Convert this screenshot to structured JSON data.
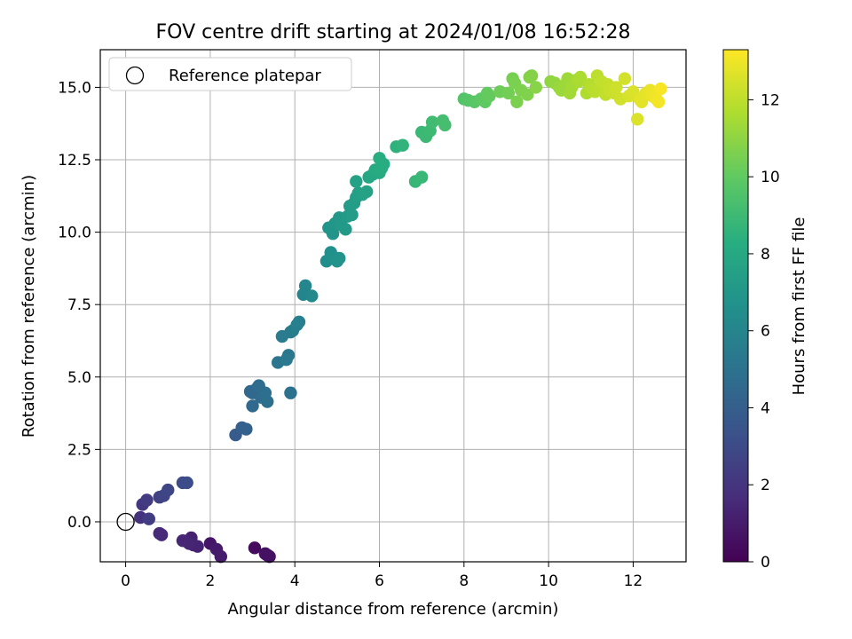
{
  "chart_data": {
    "type": "scatter",
    "title": "FOV centre drift starting at 2024/01/08 16:52:28",
    "xlabel": "Angular distance from reference (arcmin)",
    "ylabel": "Rotation from reference (arcmin)",
    "colorbar_label": "Hours from first FF file",
    "colormap": "viridis",
    "xlim": [
      -0.6,
      13.25
    ],
    "ylim": [
      -1.38,
      16.3
    ],
    "clim": [
      0,
      13.3
    ],
    "grid": true,
    "x_ticks": [
      0,
      2,
      4,
      6,
      8,
      10,
      12
    ],
    "y_ticks": [
      0.0,
      2.5,
      5.0,
      7.5,
      10.0,
      12.5,
      15.0
    ],
    "y_tick_labels": [
      "0.0",
      "2.5",
      "5.0",
      "7.5",
      "10.0",
      "12.5",
      "15.0"
    ],
    "c_ticks": [
      0,
      2,
      4,
      6,
      8,
      10,
      12
    ],
    "legend": {
      "position": "top-left",
      "entries": [
        "Reference platepar"
      ]
    },
    "reference_point": {
      "x": 0,
      "y": 0,
      "label": "Reference platepar"
    },
    "series": [
      {
        "x": [
          3.05,
          3.35,
          3.3,
          3.4,
          2.0,
          2.15,
          2.25,
          1.55,
          1.6,
          1.7,
          1.5,
          1.35,
          0.85,
          0.8
        ],
        "y": [
          -0.9,
          -1.15,
          -1.1,
          -1.2,
          -0.75,
          -0.95,
          -1.2,
          -0.55,
          -0.8,
          -0.85,
          -0.75,
          -0.65,
          -0.45,
          -0.4
        ],
        "h": [
          0.4,
          0.5,
          0.55,
          0.6,
          0.8,
          0.95,
          1.05,
          1.2,
          1.25,
          1.3,
          1.35,
          1.4,
          1.5,
          1.55
        ]
      },
      {
        "x": [
          0.35,
          0.4,
          0.5,
          0.55,
          0.8,
          0.9,
          1.0,
          1.35,
          1.45
        ],
        "y": [
          0.15,
          0.6,
          0.75,
          0.1,
          0.85,
          0.9,
          1.1,
          1.35,
          1.35
        ],
        "h": [
          1.9,
          2.1,
          2.3,
          2.4,
          2.6,
          2.7,
          2.8,
          3.0,
          3.1
        ]
      },
      {
        "x": [
          2.6,
          2.75,
          2.85,
          2.95,
          3.0,
          3.1,
          3.2,
          3.3,
          3.35,
          3.0,
          2.95,
          3.15,
          3.9
        ],
        "y": [
          3.0,
          3.25,
          3.2,
          4.5,
          4.0,
          4.6,
          4.3,
          4.45,
          4.15,
          4.45,
          4.5,
          4.7,
          4.45
        ],
        "h": [
          3.8,
          4.0,
          4.1,
          4.4,
          4.5,
          4.6,
          4.7,
          4.8,
          4.9,
          4.55,
          4.45,
          4.65,
          5.0
        ]
      },
      {
        "x": [
          3.6,
          3.85,
          3.8,
          3.9,
          3.7,
          3.95,
          4.05,
          4.1,
          4.25,
          4.2,
          4.4
        ],
        "y": [
          5.5,
          5.75,
          5.6,
          6.55,
          6.4,
          6.6,
          6.8,
          6.9,
          8.15,
          7.85,
          7.8
        ],
        "h": [
          5.2,
          5.3,
          5.35,
          5.5,
          5.45,
          5.6,
          5.7,
          5.75,
          6.1,
          6.0,
          6.2
        ]
      },
      {
        "x": [
          4.75,
          4.85,
          4.95,
          5.0,
          5.05,
          4.9,
          4.85,
          4.8,
          4.95,
          5.05,
          5.1,
          5.2,
          5.25,
          5.3,
          5.35,
          5.4,
          5.45,
          5.5,
          5.6,
          5.7,
          5.45
        ],
        "y": [
          9.0,
          9.3,
          9.1,
          9.0,
          9.1,
          9.95,
          10.1,
          10.15,
          10.3,
          10.5,
          10.25,
          10.1,
          10.55,
          10.9,
          10.6,
          11.0,
          11.2,
          11.35,
          11.3,
          11.4,
          11.75
        ],
        "h": [
          6.5,
          6.6,
          6.65,
          6.7,
          6.75,
          6.8,
          6.85,
          6.9,
          7.0,
          7.05,
          7.1,
          7.15,
          7.2,
          7.25,
          7.3,
          7.35,
          7.4,
          7.5,
          7.55,
          7.6,
          7.65
        ]
      },
      {
        "x": [
          5.75,
          5.85,
          5.9,
          6.0,
          6.05,
          6.1,
          6.0,
          6.4,
          6.55,
          6.85,
          7.0,
          7.0,
          7.1,
          7.2,
          7.25,
          7.5,
          7.55
        ],
        "y": [
          11.9,
          12.0,
          12.15,
          12.05,
          12.2,
          12.35,
          12.55,
          12.95,
          13.0,
          11.75,
          11.9,
          13.45,
          13.3,
          13.5,
          13.8,
          13.85,
          13.7
        ],
        "h": [
          7.8,
          7.9,
          8.0,
          8.1,
          8.15,
          8.2,
          8.25,
          8.5,
          8.6,
          8.8,
          8.85,
          8.9,
          8.95,
          9.0,
          9.1,
          9.2,
          9.25
        ]
      },
      {
        "x": [
          8.0,
          8.1,
          8.25,
          8.4,
          8.5,
          8.55,
          8.6,
          8.85,
          9.05,
          9.15,
          9.2,
          9.25,
          9.35,
          9.5,
          9.55,
          9.6,
          9.7
        ],
        "y": [
          14.6,
          14.55,
          14.5,
          14.6,
          14.5,
          14.8,
          14.7,
          14.85,
          14.8,
          15.3,
          15.15,
          14.5,
          14.9,
          14.75,
          15.35,
          15.4,
          15.0
        ],
        "h": [
          9.6,
          9.7,
          9.8,
          9.9,
          10.0,
          10.05,
          10.1,
          10.3,
          10.4,
          10.5,
          10.55,
          10.6,
          10.65,
          10.7,
          10.75,
          10.8,
          10.85
        ]
      },
      {
        "x": [
          10.05,
          10.15,
          10.25,
          10.3,
          10.4,
          10.45,
          10.5,
          10.55,
          10.65,
          10.7,
          10.75,
          10.9,
          10.95,
          11.0,
          11.05,
          11.1,
          11.15,
          11.2,
          11.25,
          11.35,
          11.4,
          11.45,
          11.55,
          11.6,
          11.7,
          11.8
        ],
        "y": [
          15.2,
          15.15,
          15.0,
          14.9,
          15.1,
          15.3,
          14.8,
          15.0,
          15.25,
          15.2,
          15.35,
          14.8,
          15.1,
          15.0,
          14.95,
          14.85,
          15.4,
          15.0,
          15.2,
          14.75,
          15.1,
          14.9,
          14.8,
          15.0,
          14.6,
          15.3
        ],
        "h": [
          11.0,
          11.1,
          11.2,
          11.25,
          11.3,
          11.35,
          11.4,
          11.45,
          11.5,
          11.55,
          11.6,
          11.7,
          11.75,
          11.8,
          11.85,
          11.9,
          11.95,
          12.0,
          12.05,
          12.1,
          12.15,
          12.2,
          12.25,
          12.3,
          12.35,
          12.4
        ]
      },
      {
        "x": [
          11.9,
          12.0,
          12.1,
          12.15,
          12.2,
          12.3,
          12.4,
          12.45,
          12.5,
          12.55,
          12.6,
          12.65
        ],
        "y": [
          14.7,
          14.85,
          13.9,
          14.6,
          14.5,
          14.8,
          14.9,
          14.7,
          14.75,
          14.6,
          14.5,
          14.95
        ],
        "h": [
          12.5,
          12.6,
          12.6,
          12.7,
          12.75,
          12.8,
          12.9,
          12.95,
          13.0,
          13.05,
          13.1,
          13.2
        ]
      }
    ]
  }
}
